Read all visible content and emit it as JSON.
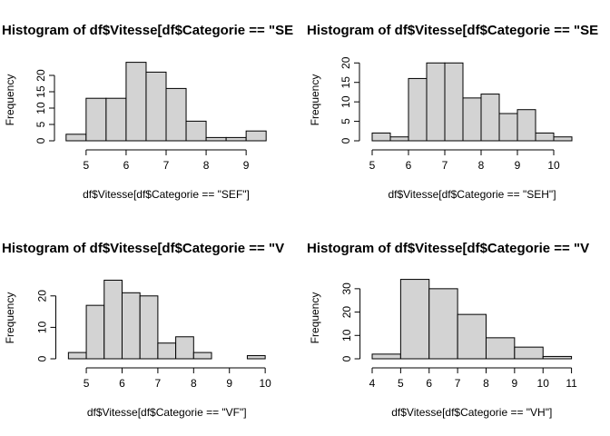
{
  "chart_data": [
    {
      "type": "histogram",
      "title": "Histogram of df$Vitesse[df$Categorie == \"SE",
      "xlabel": "df$Vitesse[df$Categorie == \"SEF\"]",
      "ylabel": "Frequency",
      "bins": [
        4.5,
        5,
        5.5,
        6,
        6.5,
        7,
        7.5,
        8,
        8.5,
        9,
        9.5
      ],
      "values": [
        2,
        13,
        13,
        24,
        21,
        16,
        6,
        1,
        1,
        3
      ],
      "color": "#d3d3d3",
      "xlim": [
        4.3,
        9.7
      ],
      "ylim": [
        0,
        25
      ],
      "xticks": [
        5,
        6,
        7,
        8,
        9
      ],
      "yticks": [
        0,
        5,
        10,
        15,
        20
      ]
    },
    {
      "type": "histogram",
      "title": "Histogram of df$Vitesse[df$Categorie == \"SE",
      "xlabel": "df$Vitesse[df$Categorie == \"SEH\"]",
      "ylabel": "Frequency",
      "bins": [
        5,
        5.5,
        6,
        6.5,
        7,
        7.5,
        8,
        8.5,
        9,
        9.5,
        10,
        10.5
      ],
      "values": [
        2,
        1,
        16,
        20,
        20,
        11,
        12,
        7,
        8,
        2,
        1
      ],
      "color": "#d3d3d3",
      "xlim": [
        4.75,
        10.75
      ],
      "ylim": [
        0,
        21
      ],
      "xticks": [
        5,
        6,
        7,
        8,
        9,
        10
      ],
      "yticks": [
        0,
        5,
        10,
        15,
        20
      ]
    },
    {
      "type": "histogram",
      "title": "Histogram of df$Vitesse[df$Categorie == \"V",
      "xlabel": "df$Vitesse[df$Categorie == \"VF\"]",
      "ylabel": "Frequency",
      "bins": [
        4.5,
        5,
        5.5,
        6,
        6.5,
        7,
        7.5,
        8,
        8.5,
        9,
        9.5,
        10
      ],
      "values": [
        2,
        17,
        25,
        21,
        20,
        5,
        7,
        2,
        0,
        0,
        1
      ],
      "color": "#d3d3d3",
      "xlim": [
        4.25,
        10.25
      ],
      "ylim": [
        0,
        26
      ],
      "xticks": [
        5,
        6,
        7,
        8,
        9,
        10
      ],
      "yticks": [
        0,
        10,
        20
      ]
    },
    {
      "type": "histogram",
      "title": "Histogram of df$Vitesse[df$Categorie == \"V",
      "xlabel": "df$Vitesse[df$Categorie == \"VH\"]",
      "ylabel": "Frequency",
      "bins": [
        4,
        5,
        6,
        7,
        8,
        9,
        10,
        11
      ],
      "values": [
        2,
        34,
        30,
        19,
        9,
        5,
        1
      ],
      "color": "#d3d3d3",
      "xlim": [
        3.7,
        11.3
      ],
      "ylim": [
        0,
        35
      ],
      "xticks": [
        4,
        5,
        6,
        7,
        8,
        9,
        10,
        11
      ],
      "yticks": [
        0,
        10,
        20,
        30
      ]
    }
  ]
}
